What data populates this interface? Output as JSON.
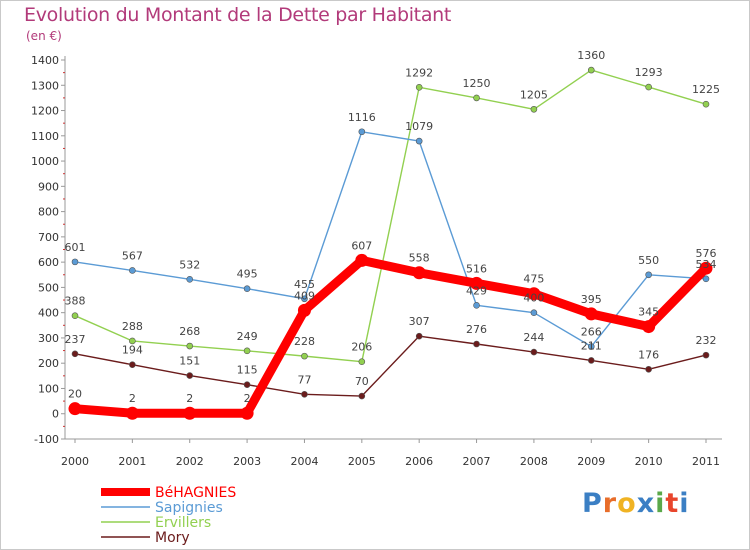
{
  "header": {
    "title": "Evolution du Montant de la Dette par Habitant",
    "subtitle": "(en €)"
  },
  "logo": {
    "text": "Proxiti",
    "letters": [
      "P",
      "r",
      "o",
      "x",
      "i",
      "t",
      "i"
    ],
    "colors": [
      "#3b7fc4",
      "#e86d2a",
      "#f0b323",
      "#3b7fc4",
      "#5aa84a",
      "#e8452c",
      "#3b7fc4"
    ]
  },
  "chart_data": {
    "type": "line",
    "x": [
      "2000",
      "2001",
      "2002",
      "2003",
      "2004",
      "2005",
      "2006",
      "2007",
      "2008",
      "2009",
      "2010",
      "2011"
    ],
    "ylim": [
      -100,
      1400
    ],
    "yticks": [
      -100,
      0,
      100,
      200,
      300,
      400,
      500,
      600,
      700,
      800,
      900,
      1000,
      1100,
      1200,
      1300,
      1400
    ],
    "grid": false,
    "legend_position": "bottom-left",
    "series": [
      {
        "name": "Mory",
        "color": "#6b1c1c",
        "values": [
          237,
          194,
          151,
          115,
          77,
          70,
          307,
          276,
          244,
          211,
          176,
          232
        ]
      },
      {
        "name": "Ervillers",
        "color": "#92d050",
        "values": [
          388,
          288,
          268,
          249,
          228,
          206,
          1292,
          1250,
          1205,
          1360,
          1293,
          1225
        ]
      },
      {
        "name": "Sapignies",
        "color": "#5b9bd5",
        "values": [
          601,
          567,
          532,
          495,
          455,
          1116,
          1079,
          429,
          400,
          266,
          550,
          534
        ]
      },
      {
        "name": "BéHAGNIES",
        "color": "#ff0000",
        "values": [
          20,
          2,
          2,
          2,
          409,
          607,
          558,
          516,
          475,
          395,
          345,
          576
        ]
      }
    ],
    "legend_order": [
      "BéHAGNIES",
      "Sapignies",
      "Ervillers",
      "Mory"
    ]
  }
}
